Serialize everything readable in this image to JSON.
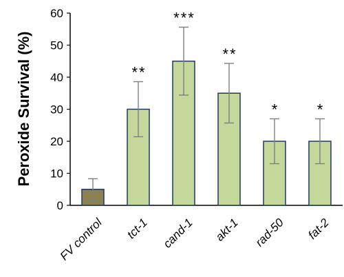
{
  "chart_data": {
    "type": "bar",
    "title": "",
    "xlabel": "",
    "ylabel": "Peroxide Survival (%)",
    "ylim": [
      0,
      60
    ],
    "yticks": [
      0,
      10,
      20,
      30,
      40,
      50,
      60
    ],
    "grid": false,
    "legend": "none",
    "categories": [
      "FV control",
      "tct-1",
      "cand-1",
      "akt-1",
      "rad-50",
      "fat-2"
    ],
    "values": [
      5,
      30,
      45,
      35,
      20,
      20
    ],
    "errors": [
      3.3,
      8.6,
      10.6,
      9.3,
      7.0,
      7.0
    ],
    "significance": [
      "",
      "**",
      "***",
      "**",
      "*",
      "*"
    ],
    "colors": {
      "control_fill": "#8b8050",
      "bar_fill": "#c5d89c",
      "bar_edge": "#1f3864",
      "error_bar": "#7f7f7f"
    }
  }
}
